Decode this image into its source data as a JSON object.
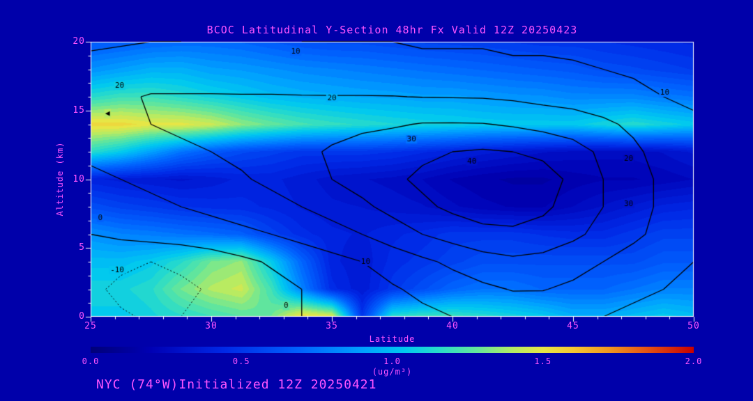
{
  "header": {
    "title": "BCOC Latitudinal Y-Section 48hr  Fx Valid 12Z 20250423"
  },
  "footer": {
    "text": "NYC (74°W)Initialized 12Z 20250421"
  },
  "colors": {
    "background": "#0000aa",
    "accent_text": "#ff55ff",
    "frame": "#ffffff",
    "contour_line": "#000000"
  },
  "chart_data": {
    "type": "heatmap",
    "title": "BCOC Latitudinal Y-Section 48hr  Fx Valid 12Z 20250423",
    "xlabel": "Latitude",
    "ylabel": "Altitude (km)",
    "x_range": [
      25,
      50
    ],
    "y_range": [
      0,
      20
    ],
    "x_ticks": [
      "25",
      "30",
      "35",
      "40",
      "45",
      "50"
    ],
    "y_ticks": [
      "0",
      "5",
      "10",
      "15",
      "20"
    ],
    "grid": "off",
    "lat_points": [
      25,
      26.25,
      27.5,
      28.75,
      30,
      31.25,
      32.5,
      33.75,
      35,
      36.25,
      37.5,
      38.75,
      40,
      41.25,
      42.5,
      43.75,
      45,
      46.25,
      47.5,
      48.75,
      50
    ],
    "alt_points": [
      0,
      2,
      4,
      6,
      8,
      10,
      12,
      14,
      16,
      18,
      20
    ],
    "fill_rows_order": "bottom_to_top",
    "fill_field_ug_m3": [
      [
        1.05,
        1.05,
        1.1,
        1.15,
        1.2,
        1.25,
        1.3,
        1.55,
        1.5,
        0.5,
        1.15,
        1.2,
        1.2,
        1.15,
        1.1,
        1.05,
        0.95,
        0.95,
        1.0,
        1.05,
        1.0
      ],
      [
        1.1,
        1.1,
        1.15,
        1.3,
        1.4,
        1.45,
        1.2,
        0.8,
        0.45,
        0.35,
        0.5,
        0.6,
        0.7,
        0.75,
        0.75,
        0.7,
        0.7,
        0.7,
        0.75,
        0.8,
        0.8
      ],
      [
        1.0,
        1.0,
        1.05,
        1.15,
        1.3,
        1.35,
        1.05,
        0.7,
        0.4,
        0.35,
        0.45,
        0.5,
        0.55,
        0.6,
        0.6,
        0.6,
        0.6,
        0.6,
        0.6,
        0.65,
        0.65
      ],
      [
        0.85,
        0.8,
        0.78,
        0.75,
        0.72,
        0.68,
        0.55,
        0.45,
        0.4,
        0.38,
        0.42,
        0.45,
        0.5,
        0.5,
        0.5,
        0.47,
        0.45,
        0.45,
        0.5,
        0.55,
        0.55
      ],
      [
        0.6,
        0.55,
        0.52,
        0.48,
        0.46,
        0.45,
        0.42,
        0.38,
        0.35,
        0.34,
        0.32,
        0.3,
        0.26,
        0.22,
        0.2,
        0.2,
        0.25,
        0.3,
        0.35,
        0.4,
        0.42
      ],
      [
        0.4,
        0.37,
        0.35,
        0.33,
        0.36,
        0.4,
        0.4,
        0.36,
        0.32,
        0.3,
        0.28,
        0.25,
        0.2,
        0.17,
        0.15,
        0.15,
        0.18,
        0.2,
        0.2,
        0.22,
        0.25
      ],
      [
        1.15,
        1.05,
        0.9,
        0.75,
        0.65,
        0.58,
        0.54,
        0.5,
        0.5,
        0.5,
        0.48,
        0.44,
        0.4,
        0.36,
        0.33,
        0.3,
        0.28,
        0.27,
        0.27,
        0.3,
        0.35
      ],
      [
        1.55,
        1.55,
        1.5,
        1.5,
        1.45,
        1.35,
        1.28,
        1.22,
        1.18,
        1.15,
        1.12,
        1.1,
        1.08,
        1.06,
        1.05,
        1.05,
        1.05,
        1.1,
        1.15,
        1.1,
        1.05
      ],
      [
        1.15,
        1.2,
        1.2,
        1.15,
        1.1,
        1.05,
        1.0,
        0.97,
        0.95,
        0.93,
        0.92,
        0.9,
        0.9,
        0.88,
        0.86,
        0.85,
        0.82,
        0.82,
        0.82,
        0.78,
        0.75
      ],
      [
        0.85,
        0.9,
        0.95,
        0.95,
        0.9,
        0.88,
        0.85,
        0.82,
        0.8,
        0.78,
        0.76,
        0.74,
        0.72,
        0.7,
        0.68,
        0.66,
        0.64,
        0.6,
        0.58,
        0.55,
        0.52
      ],
      [
        0.65,
        0.67,
        0.7,
        0.72,
        0.72,
        0.7,
        0.66,
        0.62,
        0.6,
        0.6,
        0.58,
        0.56,
        0.55,
        0.54,
        0.52,
        0.5,
        0.5,
        0.48,
        0.46,
        0.44,
        0.42
      ]
    ],
    "contour_levels": [
      -10,
      0,
      10,
      20,
      30,
      40
    ],
    "overlay_contour_field": [
      [
        -6,
        -9,
        -11,
        -10,
        -8,
        -5,
        -2,
        0,
        2,
        4,
        6,
        8,
        10,
        12,
        13,
        13,
        12,
        10,
        8,
        7,
        6
      ],
      [
        -8,
        -12,
        -14,
        -12,
        -9,
        -6,
        -3,
        0,
        3,
        6,
        9,
        12,
        15,
        18,
        20.5,
        20.4,
        18,
        15,
        12,
        10,
        8
      ],
      [
        -5,
        -8,
        -10,
        -8,
        -5,
        -2,
        1,
        4,
        7,
        10,
        14,
        18,
        22,
        26,
        28,
        27,
        24,
        20,
        16,
        13,
        10
      ],
      [
        0,
        2,
        4,
        5,
        6,
        8,
        10,
        13,
        16,
        20,
        25,
        30,
        34,
        37,
        38,
        36,
        32,
        27,
        22,
        17,
        13
      ],
      [
        4,
        6,
        8,
        10,
        12,
        14,
        17,
        20,
        24,
        28,
        33,
        38,
        42,
        45,
        45,
        42,
        36,
        30,
        24,
        18,
        14
      ],
      [
        8,
        10,
        12,
        14,
        16,
        19,
        22,
        26,
        30,
        34,
        38,
        42,
        45,
        47,
        47,
        44,
        38,
        30,
        24,
        18,
        13
      ],
      [
        12,
        14,
        16,
        18,
        20,
        22,
        25,
        28,
        31,
        34,
        36,
        38,
        40,
        41,
        40,
        38,
        34,
        28,
        22,
        16,
        12
      ],
      [
        16,
        18,
        20,
        22,
        23,
        24,
        25,
        26,
        27,
        28,
        29,
        30.5,
        30.6,
        30.4,
        29,
        27,
        25,
        22,
        18,
        14,
        11
      ],
      [
        18,
        19,
        20.5,
        20.5,
        20.5,
        20.5,
        20.5,
        20.4,
        20.3,
        20.3,
        20.2,
        19.8,
        19.6,
        19.4,
        18.5,
        17,
        16,
        14,
        12,
        10,
        9
      ],
      [
        14,
        15,
        16,
        16,
        16,
        15,
        15,
        14,
        14,
        14,
        14,
        13,
        13,
        13,
        12,
        12,
        11,
        10,
        9,
        8,
        7
      ],
      [
        8,
        9,
        10,
        10,
        11,
        11,
        11,
        10,
        10,
        10,
        10,
        9,
        9,
        9,
        8,
        8,
        8,
        7,
        7,
        6,
        5
      ]
    ],
    "contour_labels": [
      {
        "text": "10",
        "lat": 33.5,
        "alt": 19.3
      },
      {
        "text": "20",
        "lat": 26.2,
        "alt": 16.8
      },
      {
        "text": "20",
        "lat": 35.0,
        "alt": 15.9
      },
      {
        "text": "30",
        "lat": 38.3,
        "alt": 12.9
      },
      {
        "text": "40",
        "lat": 40.8,
        "alt": 11.3
      },
      {
        "text": "10",
        "lat": 48.8,
        "alt": 16.3
      },
      {
        "text": "20",
        "lat": 47.3,
        "alt": 11.5
      },
      {
        "text": "30",
        "lat": 47.3,
        "alt": 8.2
      },
      {
        "text": "0",
        "lat": 25.4,
        "alt": 7.2
      },
      {
        "text": "-10",
        "lat": 26.1,
        "alt": 3.4
      },
      {
        "text": "0",
        "lat": 33.1,
        "alt": 0.8
      },
      {
        "text": "10",
        "lat": 36.4,
        "alt": 4.0
      },
      {
        "text": "◀",
        "lat": 25.7,
        "alt": 14.8
      }
    ],
    "colorbar": {
      "min": 0.0,
      "max": 2.0,
      "ticks": [
        "0.0",
        "0.5",
        "1.0",
        "1.5",
        "2.0"
      ],
      "label": "(ug/m³)",
      "stops": [
        [
          0.0,
          "#000078"
        ],
        [
          0.1,
          "#0000b4"
        ],
        [
          0.22,
          "#0028e6"
        ],
        [
          0.35,
          "#0064ff"
        ],
        [
          0.45,
          "#00a0ff"
        ],
        [
          0.52,
          "#00c8f0"
        ],
        [
          0.58,
          "#2adcc8"
        ],
        [
          0.64,
          "#64e69b"
        ],
        [
          0.7,
          "#b4eb64"
        ],
        [
          0.75,
          "#e6e646"
        ],
        [
          0.8,
          "#f5c832"
        ],
        [
          0.86,
          "#f09620"
        ],
        [
          0.92,
          "#e65514"
        ],
        [
          1.0,
          "#c80000"
        ]
      ]
    }
  }
}
